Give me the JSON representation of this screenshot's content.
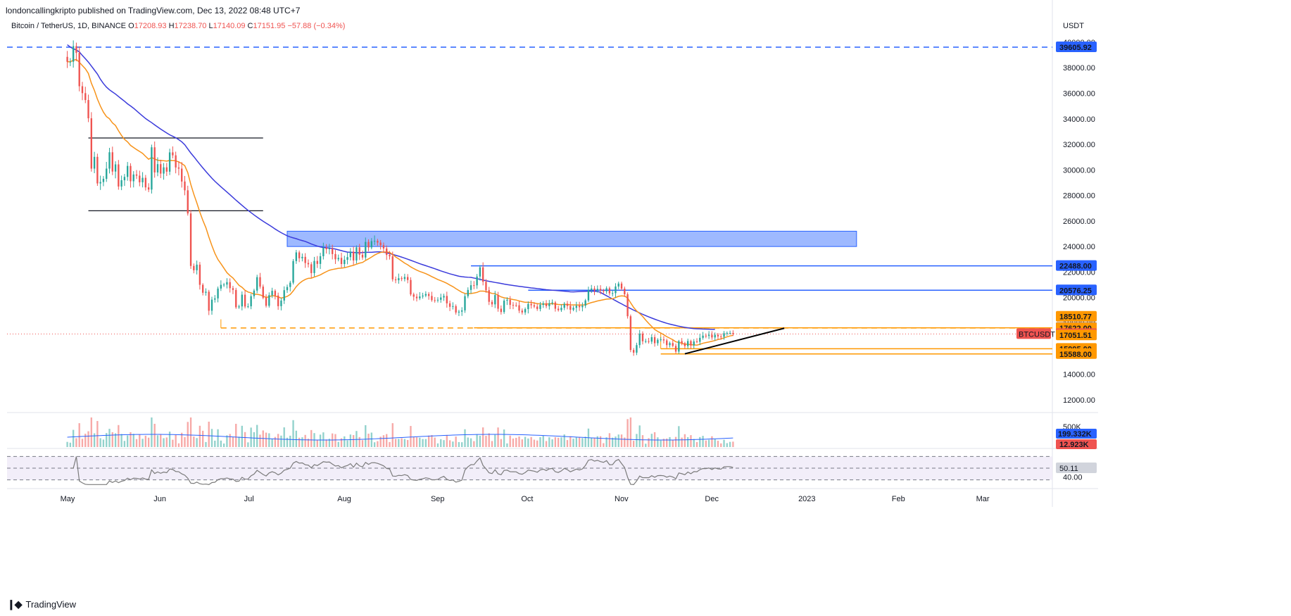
{
  "header": {
    "published": "londoncallingkripto published on TradingView.com, Dec 13, 2022 08:48 UTC+7"
  },
  "footer": {
    "brand": "TradingView"
  },
  "colors": {
    "up": "#26a69a",
    "down": "#ef5350",
    "ema_fast": "#f7931a",
    "ema_slow": "#3b3bdb",
    "resistance_blue": "#2962ff",
    "support_orange": "#ff9800",
    "zone_fill": "#7ea1ff",
    "rsi_line": "#7b7b7b"
  },
  "chart_data": {
    "type": "candlestick",
    "symbol_line": {
      "name": "Bitcoin / TetherUS, 1D, BINANCE",
      "open_label": "O",
      "open": "17208.93",
      "high_label": "H",
      "high": "17238.70",
      "low_label": "L",
      "low": "17140.09",
      "close_label": "C",
      "close": "17151.95",
      "change": "−57.88 (−0.34%)"
    },
    "currency": "USDT",
    "y_ticks": [
      12000,
      14000,
      16000,
      18000,
      20000,
      22000,
      24000,
      26000,
      28000,
      30000,
      32000,
      34000,
      36000,
      38000,
      40000
    ],
    "y_tick_labels": [
      "12000.00",
      "14000.00",
      "16000.00",
      "18000.00",
      "20000.00",
      "22000.00",
      "24000.00",
      "26000.00",
      "28000.00",
      "30000.00",
      "32000.00",
      "34000.00",
      "36000.00",
      "38000.00",
      "40000.00"
    ],
    "ylim": [
      11000,
      43000
    ],
    "x_labels": [
      "May",
      "Jun",
      "Jul",
      "Aug",
      "Sep",
      "Oct",
      "Nov",
      "Dec",
      "2023",
      "Feb",
      "Mar"
    ],
    "x_label_days": [
      0,
      31,
      61,
      92,
      123,
      153,
      184,
      214,
      245,
      276,
      304
    ],
    "xlim": [
      -20,
      327
    ],
    "closes": [
      38466,
      38470,
      39690,
      39160,
      36550,
      36010,
      35470,
      34040,
      30100,
      31020,
      28940,
      29050,
      29300,
      30100,
      31380,
      29870,
      30430,
      28700,
      29190,
      29450,
      30310,
      29110,
      29640,
      29550,
      29030,
      29380,
      28630,
      28460,
      31770,
      29800,
      30450,
      29710,
      30200,
      29860,
      31370,
      31140,
      30190,
      30100,
      29090,
      28400,
      26590,
      22480,
      22140,
      22580,
      21000,
      20380,
      20460,
      18970,
      19840,
      19940,
      20710,
      21000,
      21020,
      21210,
      20740,
      20600,
      19240,
      19310,
      20230,
      19300,
      19320,
      20110,
      20550,
      21600,
      20860,
      19990,
      19360,
      20190,
      20530,
      20160,
      19330,
      19770,
      20580,
      20830,
      21170,
      22860,
      23540,
      23080,
      23190,
      22710,
      22610,
      21920,
      22870,
      22640,
      23240,
      23900,
      23790,
      23840,
      23410,
      23000,
      23110,
      22630,
      22960,
      23170,
      23600,
      22910,
      23930,
      23360,
      23140,
      24360,
      23930,
      24420,
      24440,
      24310,
      24100,
      23850,
      23340,
      23230,
      21430,
      21360,
      21520,
      21460,
      21610,
      21380,
      20250,
      20070,
      19950,
      20090,
      20160,
      20280,
      20130,
      19800,
      19790,
      19830,
      20010,
      20130,
      19550,
      19280,
      19330,
      18830,
      18900,
      19000,
      20110,
      20600,
      20970,
      20960,
      21650,
      22370,
      21240,
      20580,
      19670,
      19470,
      20200,
      19130,
      18870,
      19760,
      19820,
      19430,
      19410,
      19400,
      18980,
      18840,
      19100,
      19500,
      19400,
      19300,
      19110,
      19430,
      19550,
      19330,
      19560,
      19620,
      19130,
      19020,
      19200,
      19520,
      19350,
      19050,
      19200,
      19360,
      19250,
      19370,
      19780,
      20580,
      20710,
      20550,
      20680,
      20560,
      20490,
      20730,
      20340,
      20350,
      20870,
      21100,
      20700,
      20260,
      18540,
      15900,
      15690,
      16280,
      17180,
      16580,
      16590,
      16550,
      16900,
      16430,
      16700,
      16730,
      16650,
      16280,
      16440,
      16220,
      15770,
      16590,
      16430,
      16200,
      16600,
      16250,
      16570,
      16540,
      16850,
      17020,
      17000,
      17090,
      16880,
      17090,
      16960,
      16930,
      17210,
      17230,
      17230,
      17150
    ],
    "ema_fast_closes": [
      38466,
      38466,
      38588,
      38644,
      38424,
      38171,
      37917,
      37549,
      36787,
      36225,
      35543,
      34991,
      34519,
      34175,
      34005,
      33676,
      33479,
      33064,
      32694,
      32389,
      32194,
      31919,
      31755,
      31592,
      31443,
      31292,
      31059,
      30835,
      30969,
      30855,
      30757,
      30737,
      30717,
      30689,
      30739,
      30736,
      30710,
      30618,
      30501,
      30326,
      29781,
      28863,
      28098,
      27420,
      26692,
      26050,
      25480,
      24741,
      24070,
      23462,
      22988,
      22653,
      22304,
      21951,
      21724,
      21534,
      21250,
      20962,
      20808,
      20574,
      20436,
      20375,
      20262,
      20263,
      20214,
      20118,
      20011,
      20067,
      20157,
      20126,
      20046,
      19967,
      20018,
      20098,
      20247,
      20520,
      20857,
      21107,
      21289,
      21421,
      21509,
      21524,
      21612,
      21690,
      21780,
      21911,
      22032,
      22143,
      22200,
      22247,
      22294,
      22306,
      22341,
      22400,
      22471,
      22527,
      22618,
      22701,
      22751,
      22904,
      23033,
      23176,
      23329,
      23446,
      23541,
      23571,
      23567,
      23542,
      23378,
      23183,
      23032,
      22867,
      22701,
      22570,
      22406,
      22274,
      22153,
      22049,
      21964,
      21875,
      21765,
      21644,
      21532,
      21417,
      21323,
      21230,
      21118,
      20981,
      20859,
      20703,
      20558,
      20417,
      20326,
      20301,
      20321,
      20356,
      20409,
      20510,
      20507,
      20481,
      20405,
      20326,
      20309,
      20185,
      20055,
      19984,
      19944,
      19893,
      19848,
      19809,
      19741,
      19684,
      19631,
      19633,
      19619,
      19581,
      19528,
      19502,
      19499,
      19493,
      19508,
      19532,
      19498,
      19461,
      19446,
      19465,
      19464,
      19433,
      19425,
      19424,
      19415,
      19424,
      19437,
      19533,
      19614,
      19669,
      19735,
      19786,
      19831,
      19880,
      19898,
      19912,
      20002,
      20102,
      20134,
      20115,
      19972,
      19594,
      19233,
      18951,
      18759,
      18526,
      18242,
      17979,
      17739,
      17502,
      17352,
      17226,
      17094,
      16941,
      16822,
      16702,
      16538,
      16488,
      16425,
      16343,
      16354,
      16303,
      16297,
      16280,
      16344,
      16427,
      16478,
      16527,
      16582,
      16639,
      16715,
      16767,
      16848,
      16928,
      16998,
      17045
    ],
    "ema_slow_closes": [
      39800,
      39616,
      39489,
      39385,
      39239,
      38958,
      38704,
      38440,
      38131,
      37818,
      37505,
      37095,
      36760,
      36482,
      36269,
      36101,
      35941,
      35745,
      35559,
      35376,
      35172,
      35006,
      34828,
      34623,
      34420,
      34218,
      34019,
      33856,
      33701,
      33527,
      33358,
      33192,
      33042,
      32890,
      32745,
      32635,
      32518,
      32366,
      32200,
      31969,
      31639,
      31320,
      31039,
      30739,
      30442,
      30157,
      29879,
      29613,
      29350,
      29108,
      28893,
      28680,
      28472,
      28262,
      28054,
      27841,
      27627,
      27427,
      27222,
      27025,
      26831,
      26653,
      26473,
      26302,
      26138,
      25979,
      25831,
      25683,
      25530,
      25370,
      25223,
      25084,
      24960,
      24841,
      24749,
      24679,
      24616,
      24531,
      24463,
      24398,
      24299,
      24196,
      24115,
      24034,
      23967,
      23926,
      23906,
      23882,
      23847,
      23802,
      23740,
      23677,
      23614,
      23561,
      23552,
      23536,
      23519,
      23513,
      23526,
      23546,
      23546,
      23549,
      23571,
      23585,
      23582,
      23558,
      23506,
      23449,
      23382,
      23312,
      23246,
      23170,
      23087,
      23007,
      22921,
      22832,
      22743,
      22654,
      22576,
      22501,
      22421,
      22341,
      22262,
      22177,
      22090,
      22013,
      21937,
      21864,
      21800,
      21737,
      21675,
      21639,
      21613,
      21594,
      21581,
      21532,
      21484,
      21429,
      21371,
      21320,
      21276,
      21233,
      21187,
      21149,
      21109,
      21060,
      21019,
      20982,
      20948,
      20916,
      20881,
      20851,
      20820,
      20791,
      20759,
      20734,
      20705,
      20678,
      20650,
      20620,
      20600,
      20580,
      20562,
      20540,
      20522,
      20501,
      20479,
      20455,
      20447,
      20459,
      20474,
      20483,
      20491,
      20502,
      20508,
      20505,
      20483,
      20407,
      20272,
      20146,
      20020,
      19890,
      19760,
      19631,
      19511,
      19380,
      19260,
      19140,
      19020,
      18911,
      18800,
      18690,
      18590,
      18492,
      18400,
      18311,
      18227,
      18143,
      18062,
      17990,
      17925,
      17868,
      17813,
      17757,
      17711,
      17670,
      17634,
      17600,
      17575,
      17561,
      17550,
      17539,
      17530,
      17522,
      17516,
      17511
    ],
    "horizontal_levels": [
      {
        "price": 39605.92,
        "label": "39605.92",
        "style": "dashed",
        "color": "#2962ff"
      },
      {
        "price": 22488.0,
        "label": "22488.00",
        "style": "solid",
        "color": "#2962ff"
      },
      {
        "price": 20576.25,
        "label": "20576.25",
        "style": "solid",
        "color": "#2962ff"
      },
      {
        "price": 17636.94,
        "label": "17636.94",
        "style": "solid",
        "color": "#ff9800"
      },
      {
        "price": 17622.0,
        "label": "17622.00",
        "style": "dashed",
        "color": "#ff9800"
      },
      {
        "price": 15995.0,
        "label": "15995.00",
        "style": "solid",
        "color": "#ff9800"
      },
      {
        "price": 15588.0,
        "label": "15588.00",
        "style": "solid",
        "color": "#ff9800"
      }
    ],
    "price_tags": [
      {
        "price": 39605.92,
        "label": "39605.92",
        "bg": "#2962ff"
      },
      {
        "price": 22488.0,
        "label": "22488.00",
        "bg": "#2962ff"
      },
      {
        "price": 20576.25,
        "label": "20576.25",
        "bg": "#2962ff"
      },
      {
        "price": 18510.77,
        "label": "18510.77",
        "bg": "#ff9800"
      },
      {
        "price": 17636.94,
        "label": "17636.94",
        "bg": "#2962ff"
      },
      {
        "price": 17622.0,
        "label": "17622.00",
        "bg": "#ff9800"
      },
      {
        "price": 17151.95,
        "label": "17151.95",
        "bg": "#ef5350"
      },
      {
        "price": 17051.51,
        "label": "17051.51",
        "bg": "#ff9800"
      },
      {
        "price": 15995.0,
        "label": "15995.00",
        "bg": "#ff9800"
      },
      {
        "price": 15588.0,
        "label": "15588.00",
        "bg": "#ff9800"
      }
    ],
    "symbol_tag": "BTCUSDT",
    "range_box": {
      "top": 32500,
      "bottom": 26800
    },
    "resistance_zone": {
      "top": 25200,
      "bottom": 24000
    },
    "trendline": {
      "start_price": 15600,
      "end_price": 17600
    },
    "volume": {
      "labels": [
        "199.332K",
        "12.923K"
      ],
      "ticks": [
        "500K"
      ]
    },
    "rsi": {
      "value": "50.11",
      "ticks": [
        "40.00"
      ],
      "ylim": [
        20,
        80
      ],
      "upper": 70,
      "lower": 30
    }
  }
}
